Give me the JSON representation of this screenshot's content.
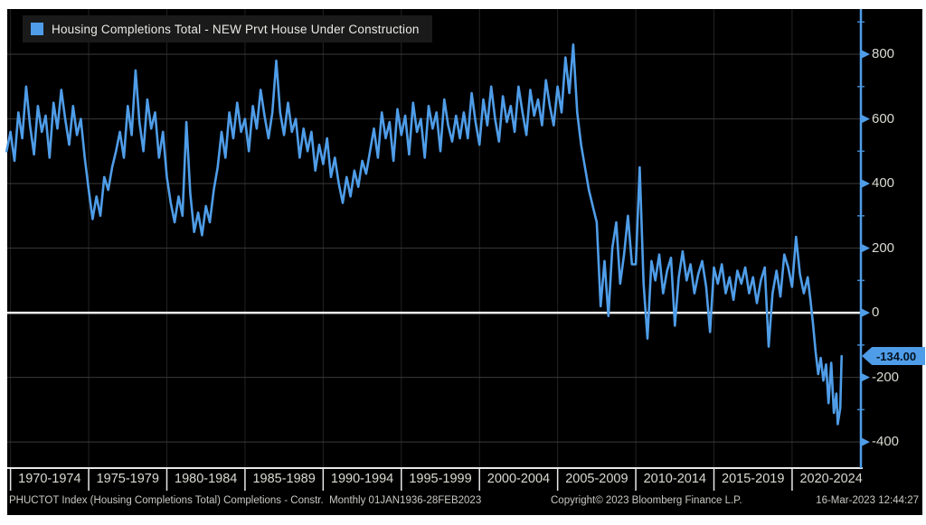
{
  "legend": {
    "label": "Housing Completions Total - NEW Prvt House Under Construction"
  },
  "footer": {
    "left": "PHUCTOT Index (Housing Completions Total) Completions - Constr.  Monthly 01JAN1936-28FEB2023",
    "center": "Copyright© 2023 Bloomberg Finance L.P.",
    "right": "16-Mar-2023 12:44:27"
  },
  "colors": {
    "page": "#ffffff",
    "background": "#000000",
    "line": "#4f9de8",
    "axis": "#4f9de8",
    "grid": "#3a3a3a",
    "grid_vertical": "#232323",
    "zero_line": "#f2f2f2",
    "x_axis_line": "#e8e8e8",
    "tick_text": "#dadad2",
    "footer_text": "#c9c9c1",
    "legend_bg": "#1a1a1a",
    "badge_bg": "#4f9de8",
    "badge_text": "#041220"
  },
  "chart_data": {
    "type": "line",
    "title": "Housing Completions Total - NEW Prvt House Under Construction",
    "legend_position": "top-left",
    "grid": true,
    "last_label": "-134.00",
    "y_axis": {
      "range": [
        -478,
        940
      ],
      "major_ticks": [
        800,
        600,
        400,
        200,
        0,
        -200,
        -400
      ],
      "gridlines": [
        800,
        600,
        400,
        200,
        -200,
        -400
      ],
      "minor_ticks": [
        900,
        700,
        500,
        300,
        100,
        -100,
        -300
      ],
      "zero_line": 0,
      "side": "right"
    },
    "x_axis": {
      "range": [
        1969.79,
        2024.4
      ],
      "bucket_labels": [
        "1970-1974",
        "1975-1979",
        "1980-1984",
        "1985-1989",
        "1990-1994",
        "1995-1999",
        "2000-2004",
        "2005-2009",
        "2010-2014",
        "2015-2019",
        "2020-2024"
      ],
      "bucket_starts": [
        1970,
        1975,
        1980,
        1985,
        1990,
        1995,
        2000,
        2005,
        2010,
        2015,
        2020
      ],
      "bucket_span": 5
    },
    "series": [
      {
        "name": "Housing Completions Total - NEW Prvt House Under Construction",
        "color": "#4f9de8",
        "x_start": 1969.75,
        "x_step": 0.25,
        "values": [
          500,
          560,
          470,
          620,
          540,
          700,
          580,
          490,
          640,
          560,
          610,
          480,
          650,
          570,
          690,
          600,
          520,
          640,
          550,
          600,
          480,
          380,
          290,
          360,
          300,
          420,
          380,
          450,
          500,
          560,
          480,
          640,
          550,
          750,
          590,
          500,
          660,
          570,
          620,
          480,
          560,
          420,
          340,
          280,
          360,
          300,
          590,
          370,
          250,
          310,
          240,
          330,
          280,
          380,
          450,
          560,
          480,
          620,
          540,
          650,
          560,
          600,
          500,
          640,
          570,
          690,
          610,
          540,
          620,
          780,
          620,
          550,
          650,
          560,
          600,
          480,
          570,
          500,
          560,
          440,
          520,
          460,
          540,
          420,
          480,
          400,
          340,
          420,
          360,
          440,
          390,
          470,
          430,
          500,
          570,
          480,
          620,
          540,
          590,
          470,
          630,
          550,
          610,
          490,
          650,
          560,
          600,
          480,
          640,
          570,
          620,
          500,
          660,
          580,
          530,
          610,
          540,
          620,
          540,
          680,
          590,
          520,
          660,
          580,
          700,
          600,
          530,
          670,
          590,
          640,
          560,
          700,
          620,
          550,
          690,
          610,
          660,
          580,
          720,
          640,
          580,
          700,
          620,
          790,
          680,
          830,
          620,
          520,
          450,
          380,
          330,
          280,
          20,
          160,
          -10,
          200,
          280,
          90,
          180,
          300,
          150,
          150,
          450,
          90,
          -80,
          160,
          100,
          180,
          60,
          130,
          170,
          -40,
          110,
          190,
          100,
          150,
          60,
          120,
          160,
          80,
          -60,
          140,
          90,
          150,
          60,
          110,
          40,
          130,
          90,
          140,
          60,
          110,
          30,
          100,
          140,
          -105,
          60,
          130,
          50,
          180,
          140,
          80,
          235,
          120,
          60,
          110
        ],
        "tail_points": [
          [
            2021.17,
            40
          ],
          [
            2021.33,
            -30
          ],
          [
            2021.5,
            -120
          ],
          [
            2021.67,
            -190
          ],
          [
            2021.83,
            -140
          ],
          [
            2022.0,
            -210
          ],
          [
            2022.17,
            -160
          ],
          [
            2022.33,
            -280
          ],
          [
            2022.5,
            -155
          ],
          [
            2022.67,
            -310
          ],
          [
            2022.83,
            -250
          ],
          [
            2022.92,
            -345
          ],
          [
            2023.0,
            -320
          ],
          [
            2023.08,
            -295
          ],
          [
            2023.17,
            -134
          ]
        ],
        "last_value": -134.0
      }
    ]
  }
}
